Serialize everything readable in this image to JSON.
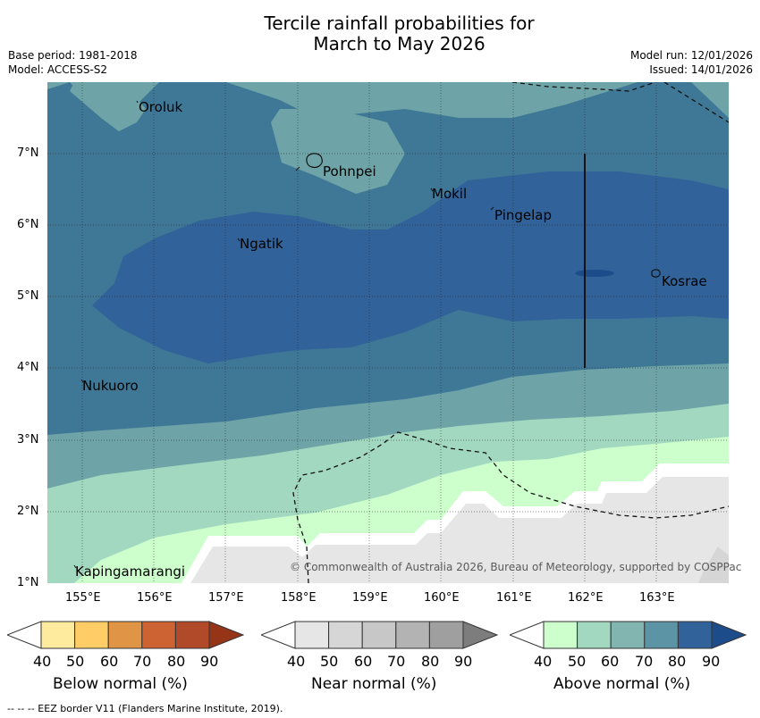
{
  "title": {
    "line1": "Tercile rainfall probabilities for",
    "line2": "March to May 2026"
  },
  "meta": {
    "base_period": "Base period: 1981-2018",
    "model": "Model: ACCESS-S2",
    "model_run": "Model run: 12/01/2026",
    "issued": "Issued: 14/01/2026"
  },
  "map": {
    "lat_labels": [
      "7°N",
      "6°N",
      "5°N",
      "4°N",
      "3°N",
      "2°N",
      "1°N"
    ],
    "lon_labels": [
      "155°E",
      "156°E",
      "157°E",
      "158°E",
      "159°E",
      "160°E",
      "161°E",
      "162°E",
      "163°E"
    ],
    "places": [
      "Oroluk",
      "Pohnpei",
      "Mokil",
      "Pingelap",
      "Ngatik",
      "Kosrae",
      "Nukuoro",
      "Kapingamarangi"
    ],
    "copyright": "© Commonwealth of Australia 2026, Bureau of Meteorology, supported by COSPPac"
  },
  "legend": {
    "below": {
      "title": "Below normal (%)",
      "ticks": [
        "40",
        "50",
        "60",
        "70",
        "80",
        "90"
      ],
      "colors": [
        "#ffeb9d",
        "#ffcc66",
        "#e09445",
        "#cd6233",
        "#b04a28",
        "#963418"
      ]
    },
    "near": {
      "title": "Near normal (%)",
      "ticks": [
        "40",
        "50",
        "60",
        "70",
        "80",
        "90"
      ],
      "colors": [
        "#e6e6e6",
        "#d6d6d6",
        "#c7c7c7",
        "#b3b3b3",
        "#9f9f9f",
        "#7d7d7d"
      ]
    },
    "above": {
      "title": "Above normal (%)",
      "ticks": [
        "40",
        "50",
        "60",
        "70",
        "80",
        "90"
      ],
      "colors": [
        "#ccffcc",
        "#a1d8bf",
        "#82b5b0",
        "#5c93a5",
        "#31639a",
        "#1c4c8a"
      ]
    }
  },
  "footer": "-- -- -- EEZ border V11 (Flanders Marine Institute, 2019)."
}
